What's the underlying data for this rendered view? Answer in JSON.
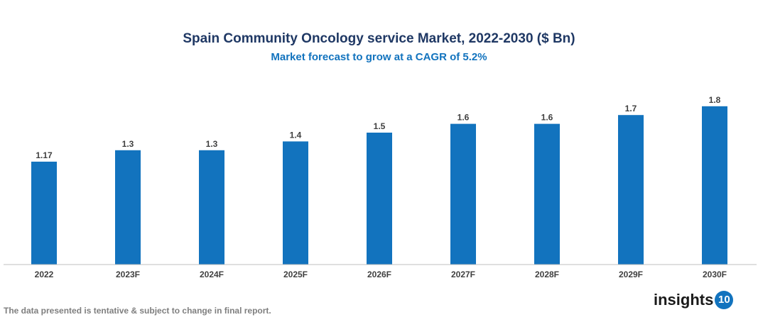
{
  "chart_data": {
    "type": "bar",
    "title": "Spain Community Oncology service Market, 2022-2030 ($ Bn)",
    "subtitle": "Market forecast to grow at a CAGR of 5.2%",
    "categories": [
      "2022",
      "2023F",
      "2024F",
      "2025F",
      "2026F",
      "2027F",
      "2028F",
      "2029F",
      "2030F"
    ],
    "values": [
      1.17,
      1.3,
      1.3,
      1.4,
      1.5,
      1.6,
      1.6,
      1.7,
      1.8
    ],
    "data_labels": [
      "1.17",
      "1.3",
      "1.3",
      "1.4",
      "1.5",
      "1.6",
      "1.6",
      "1.7",
      "1.8"
    ],
    "xlabel": "",
    "ylabel": "",
    "ylim": [
      0,
      1.8
    ],
    "grid": false,
    "bar_color": "#1273be"
  },
  "footer": {
    "note": "The data presented is tentative & subject to change in final report.",
    "logo_text": "insights",
    "logo_number": "10"
  }
}
